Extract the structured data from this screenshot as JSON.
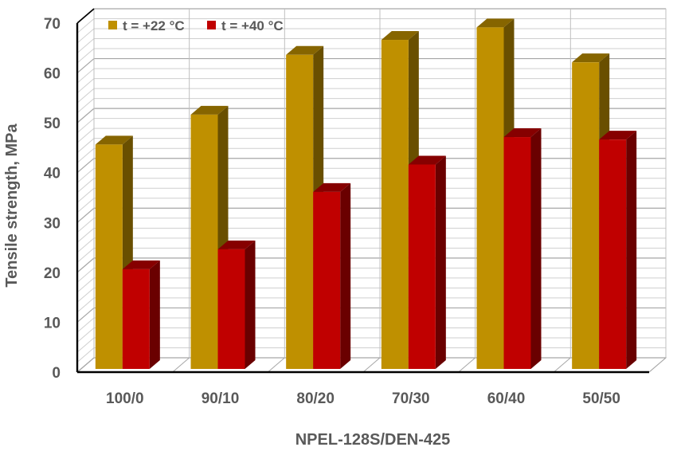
{
  "chart_data": {
    "type": "bar",
    "categories": [
      "100/0",
      "90/10",
      "80/20",
      "70/30",
      "60/40",
      "50/50"
    ],
    "series": [
      {
        "name": "t = +22 °C",
        "values": [
          45,
          51,
          63,
          66,
          68.5,
          61.5
        ],
        "color": "#BF9000"
      },
      {
        "name": "t = +40 °C",
        "values": [
          20,
          24,
          35.5,
          41,
          46.5,
          46
        ],
        "color": "#C00000"
      }
    ],
    "title": "",
    "xlabel": "NPEL-128S/DEN-425",
    "ylabel": "Tensile strength, MPa",
    "ylim": [
      0,
      70
    ],
    "yticks": [
      "0",
      "10",
      "20",
      "30",
      "40",
      "50",
      "60",
      "70"
    ],
    "grid": true,
    "legend": "top-left",
    "style": "3d-clustered-column"
  }
}
